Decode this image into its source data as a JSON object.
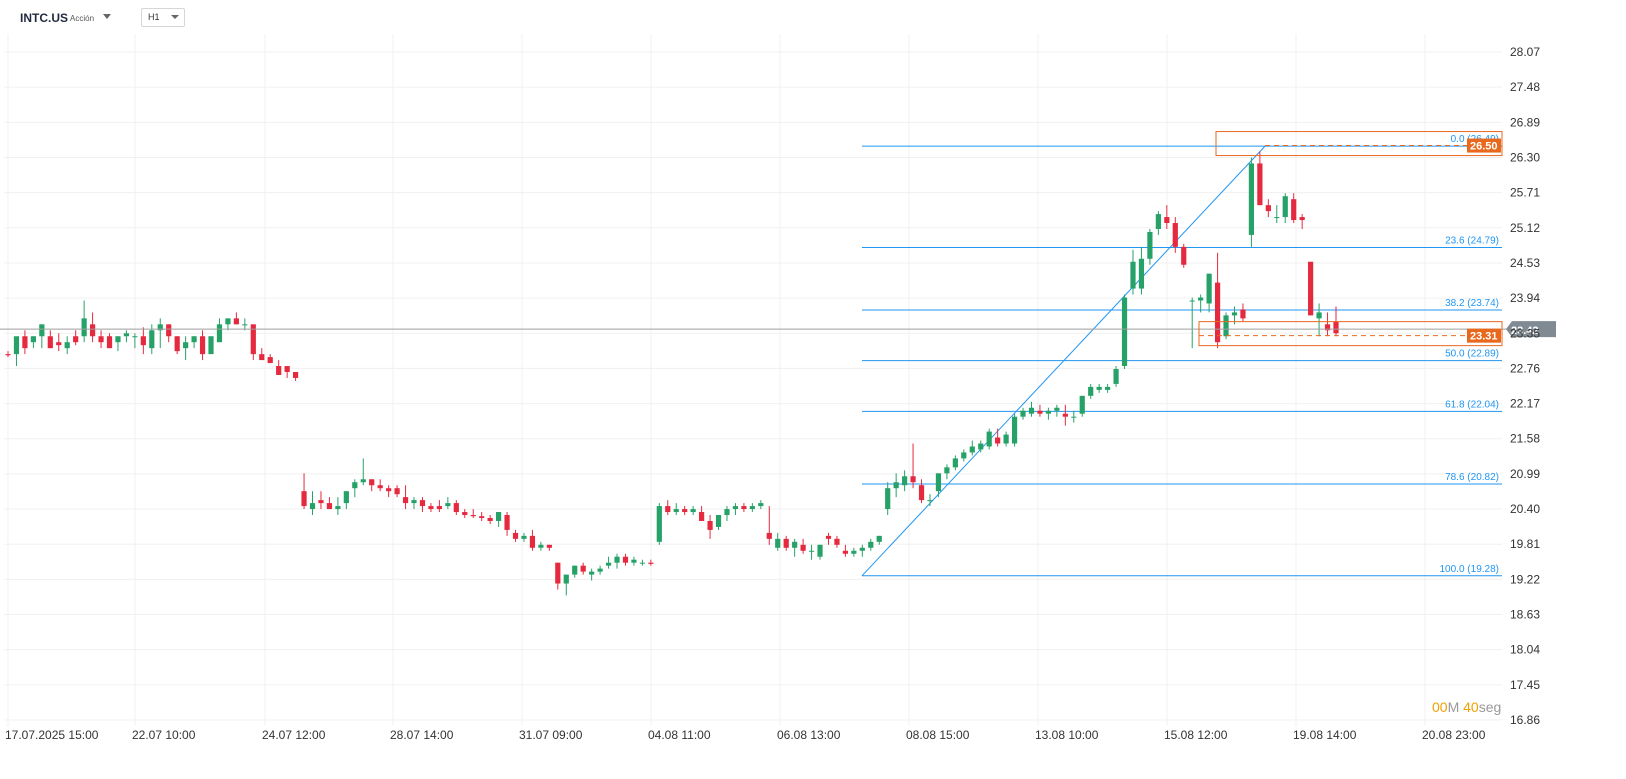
{
  "header": {
    "symbol": "INTC.US",
    "instrument_type": "Acción",
    "timeframe": "H1"
  },
  "timer": {
    "minutes_value": "00",
    "minutes_unit": "M",
    "seconds_value": "40",
    "seconds_unit": "seg"
  },
  "colors": {
    "up": "#26a269",
    "down": "#e5293f",
    "fib": "#2196f3",
    "accent": "#e8691e",
    "price_line": "#9e9e9e"
  },
  "chart_data": {
    "type": "candlestick",
    "title": "",
    "xlabel": "",
    "ylabel": "",
    "grid": true,
    "ylim": [
      16.86,
      28.07
    ],
    "y_ticks": [
      "28.07",
      "27.48",
      "26.89",
      "26.30",
      "25.71",
      "25.12",
      "24.53",
      "23.94",
      "23.35",
      "22.76",
      "22.17",
      "21.58",
      "20.99",
      "20.40",
      "19.81",
      "19.22",
      "18.63",
      "18.04",
      "17.45",
      "16.86"
    ],
    "x_ticks": [
      "17.07.2025  15:00",
      "22.07  10:00",
      "24.07  12:00",
      "28.07  14:00",
      "31.07  09:00",
      "04.08  11:00",
      "06.08  13:00",
      "08.08  15:00",
      "13.08  10:00",
      "15.08  12:00",
      "19.08  14:00",
      "20.08  23:00"
    ],
    "current_price": "23.42",
    "price_badges": [
      {
        "label": "26.50",
        "value": 26.5
      },
      {
        "label": "23.31",
        "value": 23.31
      }
    ],
    "fibonacci": {
      "from": 19.28,
      "to": 26.49,
      "levels": [
        {
          "label": "0.0 (26.49)",
          "value": 26.49
        },
        {
          "label": "23.6 (24.79)",
          "value": 24.79
        },
        {
          "label": "38.2 (23.74)",
          "value": 23.74
        },
        {
          "label": "50.0 (22.89)",
          "value": 22.89
        },
        {
          "label": "61.8 (22.04)",
          "value": 22.04
        },
        {
          "label": "78.6 (20.82)",
          "value": 20.82
        },
        {
          "label": "100.0 (19.28)",
          "value": 19.28
        }
      ]
    },
    "candles": [
      [
        23.0,
        23.05,
        22.95,
        22.98
      ],
      [
        23.0,
        23.2,
        22.8,
        23.3
      ],
      [
        23.3,
        23.4,
        23.0,
        23.1
      ],
      [
        23.2,
        23.3,
        23.1,
        23.3
      ],
      [
        23.3,
        23.5,
        23.1,
        23.5
      ],
      [
        23.3,
        23.4,
        23.1,
        23.1
      ],
      [
        23.2,
        23.35,
        23.05,
        23.15
      ],
      [
        23.1,
        23.3,
        23.0,
        23.2
      ],
      [
        23.3,
        23.4,
        23.15,
        23.2
      ],
      [
        23.3,
        23.9,
        23.2,
        23.6
      ],
      [
        23.5,
        23.7,
        23.2,
        23.3
      ],
      [
        23.3,
        23.4,
        23.1,
        23.2
      ],
      [
        23.3,
        23.35,
        23.1,
        23.1
      ],
      [
        23.2,
        23.3,
        23.05,
        23.3
      ],
      [
        23.3,
        23.4,
        23.2,
        23.35
      ],
      [
        23.3,
        23.35,
        23.1,
        23.3
      ],
      [
        23.3,
        23.45,
        23.0,
        23.15
      ],
      [
        23.1,
        23.5,
        23.0,
        23.4
      ],
      [
        23.4,
        23.6,
        23.1,
        23.5
      ],
      [
        23.5,
        23.5,
        23.2,
        23.3
      ],
      [
        23.3,
        23.3,
        23.0,
        23.05
      ],
      [
        23.1,
        23.3,
        22.9,
        23.2
      ],
      [
        23.2,
        23.3,
        23.1,
        23.3
      ],
      [
        23.3,
        23.4,
        22.9,
        23.0
      ],
      [
        23.0,
        23.3,
        23.0,
        23.3
      ],
      [
        23.2,
        23.6,
        23.2,
        23.5
      ],
      [
        23.5,
        23.6,
        23.4,
        23.6
      ],
      [
        23.6,
        23.7,
        23.5,
        23.5
      ],
      [
        23.5,
        23.6,
        23.4,
        23.5
      ],
      [
        23.5,
        23.5,
        22.9,
        23.0
      ],
      [
        23.0,
        23.1,
        22.9,
        22.9
      ],
      [
        22.95,
        23.0,
        22.85,
        22.85
      ],
      [
        22.8,
        22.9,
        22.65,
        22.65
      ],
      [
        22.8,
        22.8,
        22.6,
        22.7
      ],
      [
        22.7,
        22.7,
        22.55,
        22.6
      ],
      [
        20.7,
        21.0,
        20.4,
        20.45
      ],
      [
        20.4,
        20.7,
        20.3,
        20.5
      ],
      [
        20.55,
        20.7,
        20.4,
        20.5
      ],
      [
        20.5,
        20.6,
        20.4,
        20.4
      ],
      [
        20.4,
        20.6,
        20.3,
        20.45
      ],
      [
        20.5,
        20.7,
        20.4,
        20.7
      ],
      [
        20.75,
        20.9,
        20.6,
        20.85
      ],
      [
        20.85,
        21.25,
        20.8,
        20.9
      ],
      [
        20.9,
        20.9,
        20.7,
        20.8
      ],
      [
        20.8,
        20.9,
        20.7,
        20.75
      ],
      [
        20.75,
        20.8,
        20.6,
        20.7
      ],
      [
        20.75,
        20.8,
        20.6,
        20.65
      ],
      [
        20.6,
        20.8,
        20.4,
        20.5
      ],
      [
        20.5,
        20.6,
        20.4,
        20.55
      ],
      [
        20.55,
        20.6,
        20.35,
        20.45
      ],
      [
        20.45,
        20.5,
        20.35,
        20.4
      ],
      [
        20.45,
        20.55,
        20.35,
        20.4
      ],
      [
        20.45,
        20.6,
        20.4,
        20.5
      ],
      [
        20.5,
        20.55,
        20.3,
        20.35
      ],
      [
        20.35,
        20.4,
        20.25,
        20.3
      ],
      [
        20.3,
        20.4,
        20.25,
        20.28
      ],
      [
        20.28,
        20.35,
        20.2,
        20.25
      ],
      [
        20.25,
        20.3,
        20.15,
        20.2
      ],
      [
        20.2,
        20.35,
        20.1,
        20.35
      ],
      [
        20.3,
        20.35,
        19.95,
        20.05
      ],
      [
        20.0,
        20.05,
        19.85,
        19.9
      ],
      [
        19.9,
        20.0,
        19.85,
        19.95
      ],
      [
        19.95,
        20.05,
        19.7,
        19.75
      ],
      [
        19.75,
        19.85,
        19.7,
        19.8
      ],
      [
        19.8,
        19.8,
        19.7,
        19.75
      ],
      [
        19.5,
        19.5,
        19.05,
        19.15
      ],
      [
        19.15,
        19.3,
        18.95,
        19.3
      ],
      [
        19.3,
        19.45,
        19.25,
        19.45
      ],
      [
        19.45,
        19.5,
        19.3,
        19.35
      ],
      [
        19.3,
        19.4,
        19.2,
        19.35
      ],
      [
        19.35,
        19.45,
        19.3,
        19.4
      ],
      [
        19.45,
        19.6,
        19.4,
        19.5
      ],
      [
        19.5,
        19.65,
        19.4,
        19.6
      ],
      [
        19.6,
        19.65,
        19.45,
        19.5
      ],
      [
        19.5,
        19.6,
        19.45,
        19.55
      ],
      [
        19.5,
        19.55,
        19.45,
        19.5
      ],
      [
        19.5,
        19.55,
        19.45,
        19.48
      ],
      [
        19.85,
        20.5,
        19.8,
        20.45
      ],
      [
        20.45,
        20.55,
        20.3,
        20.35
      ],
      [
        20.35,
        20.5,
        20.3,
        20.4
      ],
      [
        20.4,
        20.45,
        20.3,
        20.35
      ],
      [
        20.35,
        20.45,
        20.3,
        20.4
      ],
      [
        20.35,
        20.45,
        20.2,
        20.2
      ],
      [
        20.2,
        20.3,
        19.9,
        20.05
      ],
      [
        20.1,
        20.3,
        20.05,
        20.3
      ],
      [
        20.3,
        20.45,
        20.2,
        20.4
      ],
      [
        20.4,
        20.5,
        20.3,
        20.45
      ],
      [
        20.45,
        20.5,
        20.35,
        20.4
      ],
      [
        20.4,
        20.5,
        20.35,
        20.45
      ],
      [
        20.45,
        20.55,
        20.4,
        20.5
      ],
      [
        20.0,
        20.45,
        19.8,
        19.9
      ],
      [
        19.75,
        20.0,
        19.7,
        19.9
      ],
      [
        19.9,
        19.95,
        19.7,
        19.75
      ],
      [
        19.75,
        19.9,
        19.6,
        19.85
      ],
      [
        19.8,
        19.9,
        19.65,
        19.7
      ],
      [
        19.7,
        19.8,
        19.55,
        19.7
      ],
      [
        19.6,
        19.8,
        19.55,
        19.8
      ],
      [
        19.95,
        20.0,
        19.8,
        19.9
      ],
      [
        19.9,
        19.95,
        19.75,
        19.8
      ],
      [
        19.7,
        19.8,
        19.6,
        19.65
      ],
      [
        19.65,
        19.75,
        19.6,
        19.7
      ],
      [
        19.7,
        19.8,
        19.6,
        19.75
      ],
      [
        19.75,
        19.9,
        19.7,
        19.85
      ],
      [
        19.85,
        19.95,
        19.8,
        19.95
      ],
      [
        20.4,
        20.85,
        20.3,
        20.75
      ],
      [
        20.75,
        21.0,
        20.6,
        20.85
      ],
      [
        20.8,
        21.05,
        20.7,
        20.95
      ],
      [
        20.95,
        21.5,
        20.75,
        20.85
      ],
      [
        20.8,
        20.9,
        20.5,
        20.55
      ],
      [
        20.55,
        20.65,
        20.45,
        20.55
      ],
      [
        20.7,
        21.0,
        20.6,
        21.0
      ],
      [
        21.0,
        21.15,
        20.9,
        21.1
      ],
      [
        21.1,
        21.3,
        21.05,
        21.25
      ],
      [
        21.25,
        21.4,
        21.2,
        21.35
      ],
      [
        21.35,
        21.55,
        21.3,
        21.45
      ],
      [
        21.4,
        21.55,
        21.35,
        21.5
      ],
      [
        21.45,
        21.75,
        21.4,
        21.7
      ],
      [
        21.6,
        21.75,
        21.45,
        21.5
      ],
      [
        21.5,
        21.7,
        21.45,
        21.65
      ],
      [
        21.5,
        22.0,
        21.45,
        21.95
      ],
      [
        21.95,
        22.1,
        21.9,
        22.05
      ],
      [
        22.0,
        22.2,
        21.95,
        22.1
      ],
      [
        22.05,
        22.15,
        21.95,
        22.0
      ],
      [
        22.0,
        22.1,
        21.9,
        22.05
      ],
      [
        22.05,
        22.15,
        21.95,
        22.1
      ],
      [
        22.0,
        22.15,
        21.8,
        21.95
      ],
      [
        21.95,
        22.05,
        21.85,
        21.95
      ],
      [
        22.0,
        22.3,
        21.95,
        22.3
      ],
      [
        22.3,
        22.5,
        22.25,
        22.45
      ],
      [
        22.4,
        22.5,
        22.35,
        22.45
      ],
      [
        22.4,
        22.5,
        22.35,
        22.45
      ],
      [
        22.5,
        22.8,
        22.45,
        22.75
      ],
      [
        22.8,
        24.0,
        22.75,
        23.95
      ],
      [
        24.1,
        24.75,
        24.0,
        24.55
      ],
      [
        24.1,
        24.8,
        24.0,
        24.6
      ],
      [
        24.6,
        25.1,
        24.5,
        25.05
      ],
      [
        25.1,
        25.4,
        25.0,
        25.35
      ],
      [
        25.3,
        25.5,
        25.1,
        25.2
      ],
      [
        25.2,
        25.3,
        24.7,
        24.8
      ],
      [
        24.8,
        24.85,
        24.45,
        24.5
      ],
      [
        23.9,
        23.95,
        23.1,
        23.9
      ],
      [
        23.9,
        24.0,
        23.7,
        23.95
      ],
      [
        23.85,
        24.35,
        23.7,
        24.35
      ],
      [
        24.2,
        24.7,
        23.1,
        23.2
      ],
      [
        23.3,
        23.7,
        23.25,
        23.65
      ],
      [
        23.65,
        23.8,
        23.5,
        23.7
      ],
      [
        23.75,
        23.85,
        23.55,
        23.6
      ],
      [
        25.0,
        26.3,
        24.8,
        26.2
      ],
      [
        26.2,
        26.4,
        25.5,
        25.5
      ],
      [
        25.5,
        25.6,
        25.3,
        25.4
      ],
      [
        25.3,
        25.5,
        25.2,
        25.3
      ],
      [
        25.3,
        25.7,
        25.2,
        25.65
      ],
      [
        25.6,
        25.7,
        25.2,
        25.25
      ],
      [
        25.3,
        25.35,
        25.1,
        25.25
      ],
      [
        24.55,
        24.55,
        23.65,
        23.65
      ],
      [
        23.6,
        23.85,
        23.3,
        23.7
      ],
      [
        23.5,
        23.7,
        23.3,
        23.4
      ],
      [
        23.55,
        23.8,
        23.3,
        23.35
      ]
    ]
  }
}
